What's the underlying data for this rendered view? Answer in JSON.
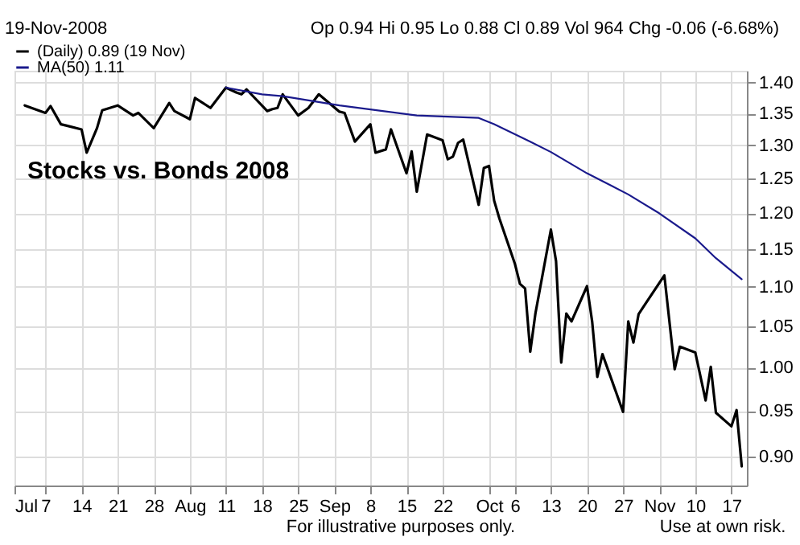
{
  "chart_data": {
    "type": "line",
    "title": "19-Nov-2008",
    "subtitle": "Op 0.94 Hi 0.95 Lo 0.88 Cl 0.89 Vol 964 Chg -0.06 (-6.68%)",
    "annotations": [
      "Stocks vs. Bonds 2008",
      "For illustrative purposes only.",
      "Use at own risk."
    ],
    "series": [
      {
        "name": "(Daily) 0.89 (19 Nov)",
        "color": "#000000",
        "x": [
          "2008-07-03",
          "2008-07-07",
          "2008-07-08",
          "2008-07-10",
          "2008-07-11",
          "2008-07-14",
          "2008-07-15",
          "2008-07-17",
          "2008-07-18",
          "2008-07-21",
          "2008-07-24",
          "2008-07-25",
          "2008-07-28",
          "2008-07-31",
          "2008-08-01",
          "2008-08-04",
          "2008-08-05",
          "2008-08-08",
          "2008-08-11",
          "2008-08-13",
          "2008-08-14",
          "2008-08-15",
          "2008-08-19",
          "2008-08-20",
          "2008-08-21",
          "2008-08-22",
          "2008-08-25",
          "2008-08-27",
          "2008-08-29",
          "2008-09-02",
          "2008-09-03",
          "2008-09-05",
          "2008-09-08",
          "2008-09-09",
          "2008-09-11",
          "2008-09-12",
          "2008-09-15",
          "2008-09-16",
          "2008-09-17",
          "2008-09-19",
          "2008-09-22",
          "2008-09-23",
          "2008-09-24",
          "2008-09-25",
          "2008-09-26",
          "2008-09-29",
          "2008-09-30",
          "2008-10-01",
          "2008-10-02",
          "2008-10-03",
          "2008-10-06",
          "2008-10-07",
          "2008-10-08",
          "2008-10-09",
          "2008-10-10",
          "2008-10-13",
          "2008-10-14",
          "2008-10-15",
          "2008-10-16",
          "2008-10-17",
          "2008-10-20",
          "2008-10-21",
          "2008-10-22",
          "2008-10-23",
          "2008-10-27",
          "2008-10-28",
          "2008-10-29",
          "2008-10-30",
          "2008-10-31",
          "2008-11-04",
          "2008-11-06",
          "2008-11-07",
          "2008-11-10",
          "2008-11-12",
          "2008-11-13",
          "2008-11-14",
          "2008-11-17",
          "2008-11-18",
          "2008-11-19"
        ],
        "values": [
          1.363,
          1.351,
          1.362,
          1.333,
          1.331,
          1.325,
          1.289,
          1.327,
          1.355,
          1.363,
          1.347,
          1.351,
          1.327,
          1.367,
          1.354,
          1.341,
          1.375,
          1.359,
          1.392,
          1.384,
          1.381,
          1.389,
          1.354,
          1.357,
          1.359,
          1.381,
          1.347,
          1.359,
          1.381,
          1.353,
          1.351,
          1.306,
          1.333,
          1.289,
          1.294,
          1.325,
          1.258,
          1.291,
          1.231,
          1.317,
          1.308,
          1.279,
          1.283,
          1.304,
          1.309,
          1.212,
          1.266,
          1.269,
          1.218,
          1.193,
          1.131,
          1.104,
          1.098,
          1.019,
          1.066,
          1.177,
          1.134,
          1.006,
          1.066,
          1.056,
          1.101,
          1.056,
          0.989,
          1.016,
          0.949,
          1.056,
          1.03,
          1.065,
          1.075,
          1.115,
          0.998,
          1.025,
          1.018,
          0.962,
          1.001,
          0.948,
          0.933,
          0.951,
          0.89
        ]
      },
      {
        "name": "MA(50) 1.11",
        "color": "#1a1a8c",
        "x": [
          "2008-08-11",
          "2008-08-18",
          "2008-08-22",
          "2008-09-02",
          "2008-09-17",
          "2008-09-29",
          "2008-10-02",
          "2008-10-09",
          "2008-10-13",
          "2008-10-20",
          "2008-10-28",
          "2008-11-03",
          "2008-11-10",
          "2008-11-14",
          "2008-11-19"
        ],
        "values": [
          1.392,
          1.381,
          1.378,
          1.363,
          1.347,
          1.343,
          1.333,
          1.306,
          1.29,
          1.258,
          1.227,
          1.2,
          1.165,
          1.138,
          1.11
        ]
      }
    ],
    "xlim": [
      "2008-07-01",
      "2008-11-20"
    ],
    "xticks": [
      {
        "value": "2008-07-01",
        "label": "Jul"
      },
      {
        "value": "2008-07-07",
        "label": "7"
      },
      {
        "value": "2008-07-14",
        "label": "14"
      },
      {
        "value": "2008-07-21",
        "label": "21"
      },
      {
        "value": "2008-07-28",
        "label": "28"
      },
      {
        "value": "2008-08-04",
        "label": "Aug"
      },
      {
        "value": "2008-08-11",
        "label": "11"
      },
      {
        "value": "2008-08-18",
        "label": "18"
      },
      {
        "value": "2008-08-25",
        "label": "25"
      },
      {
        "value": "2008-09-01",
        "label": "Sep"
      },
      {
        "value": "2008-09-08",
        "label": "8"
      },
      {
        "value": "2008-09-15",
        "label": "15"
      },
      {
        "value": "2008-09-22",
        "label": "22"
      },
      {
        "value": "2008-10-01",
        "label": "Oct"
      },
      {
        "value": "2008-10-06",
        "label": "6"
      },
      {
        "value": "2008-10-13",
        "label": "13"
      },
      {
        "value": "2008-10-20",
        "label": "20"
      },
      {
        "value": "2008-10-27",
        "label": "27"
      },
      {
        "value": "2008-11-03",
        "label": "Nov"
      },
      {
        "value": "2008-11-10",
        "label": "10"
      },
      {
        "value": "2008-11-17",
        "label": "17"
      }
    ],
    "ylim": [
      0.87,
      1.42
    ],
    "yticks": [
      {
        "value": 0.9,
        "label": "0.90"
      },
      {
        "value": 0.95,
        "label": "0.95"
      },
      {
        "value": 1.0,
        "label": "1.00"
      },
      {
        "value": 1.05,
        "label": "1.05"
      },
      {
        "value": 1.1,
        "label": "1.10"
      },
      {
        "value": 1.15,
        "label": "1.15"
      },
      {
        "value": 1.2,
        "label": "1.20"
      },
      {
        "value": 1.25,
        "label": "1.25"
      },
      {
        "value": 1.3,
        "label": "1.30"
      },
      {
        "value": 1.35,
        "label": "1.35"
      },
      {
        "value": 1.4,
        "label": "1.40"
      }
    ],
    "log": "y",
    "grid": true,
    "legend": "top left",
    "marker": "none",
    "line_style": "solid"
  }
}
